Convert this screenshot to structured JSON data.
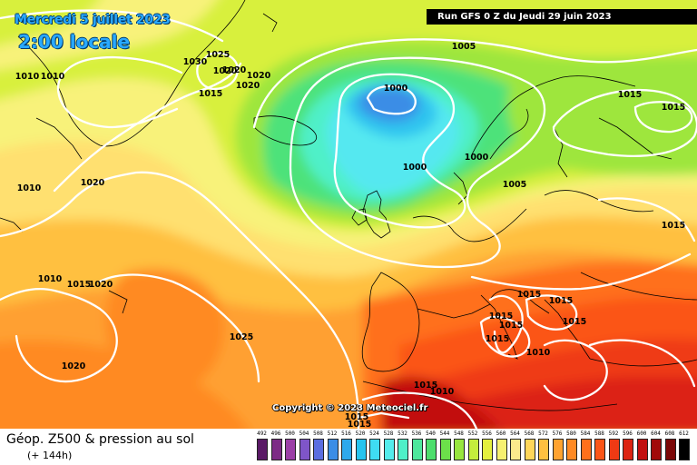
{
  "header": {
    "date_title": "Mercredi 5 juillet 2023",
    "time_title": "2:00 locale",
    "run_info": "Run GFS 0 Z du Jeudi 29 juin 2023"
  },
  "footer": {
    "field_title": "Géop. Z500 & pression au sol",
    "lead_time": "(+ 144h)",
    "copyright": "Copyright © 2023 Meteociel.fr"
  },
  "legend": {
    "values": [
      "492",
      "496",
      "500",
      "504",
      "508",
      "512",
      "516",
      "520",
      "524",
      "528",
      "532",
      "536",
      "540",
      "544",
      "548",
      "552",
      "556",
      "560",
      "564",
      "568",
      "572",
      "576",
      "580",
      "584",
      "588",
      "592",
      "596",
      "600",
      "604",
      "608",
      "612"
    ],
    "colors": [
      "#5a1a66",
      "#7d2b86",
      "#9b3fa6",
      "#7f55c9",
      "#5b6ee0",
      "#3b8de6",
      "#2ea9ec",
      "#27c4ef",
      "#3fdcf2",
      "#55ecec",
      "#4ff0c8",
      "#4ee89c",
      "#4cde6c",
      "#6ce04a",
      "#98e63e",
      "#c4ee3c",
      "#e4f03e",
      "#f6f070",
      "#fbe98c",
      "#ffd65a",
      "#ffc040",
      "#ffa330",
      "#ff8a24",
      "#ff701c",
      "#fb5518",
      "#ef3a14",
      "#dc2412",
      "#c21010",
      "#a10a0a",
      "#7c0808",
      "#000000"
    ]
  },
  "isobar_labels": [
    {
      "text": "1010"
    },
    {
      "text": "1010"
    },
    {
      "text": "1030"
    },
    {
      "text": "1025"
    },
    {
      "text": "1020"
    },
    {
      "text": "1020"
    },
    {
      "text": "1020"
    },
    {
      "text": "1020"
    },
    {
      "text": "1015"
    },
    {
      "text": "1000"
    },
    {
      "text": "1005"
    },
    {
      "text": "1000"
    },
    {
      "text": "1015"
    },
    {
      "text": "1015"
    },
    {
      "text": "1000"
    },
    {
      "text": "1005"
    },
    {
      "text": "1010"
    },
    {
      "text": "1020"
    },
    {
      "text": "1010"
    },
    {
      "text": "1015"
    },
    {
      "text": "1020"
    },
    {
      "text": "1025"
    },
    {
      "text": "1020"
    },
    {
      "text": "1015"
    },
    {
      "text": "1015"
    },
    {
      "text": "1015"
    },
    {
      "text": "1015"
    },
    {
      "text": "1015"
    },
    {
      "text": "1015"
    },
    {
      "text": "1015"
    },
    {
      "text": "1010"
    },
    {
      "text": "1015"
    },
    {
      "text": "1010"
    },
    {
      "text": "1015"
    },
    {
      "text": "1015"
    }
  ]
}
